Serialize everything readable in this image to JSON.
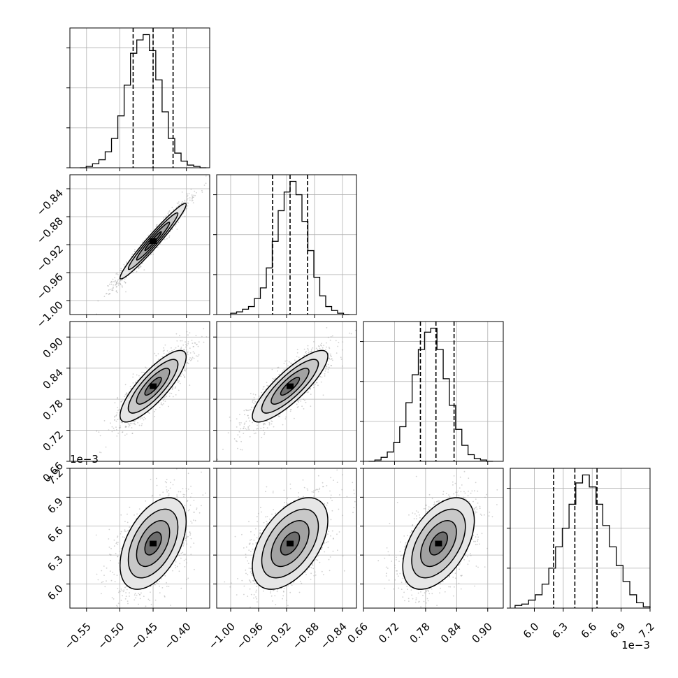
{
  "chart_data": {
    "type": "corner",
    "parameters": [
      {
        "range": [
          -0.575,
          -0.365
        ],
        "ticks": [
          -0.55,
          -0.5,
          -0.45,
          -0.4
        ],
        "tick_labels": [
          "−0.55",
          "−0.50",
          "−0.45",
          "−0.40"
        ],
        "offset_label": ""
      },
      {
        "range": [
          -1.02,
          -0.82
        ],
        "ticks": [
          -1.0,
          -0.96,
          -0.92,
          -0.88,
          -0.84
        ],
        "tick_labels": [
          "−1.00",
          "−0.96",
          "−0.92",
          "−0.88",
          "−0.84"
        ],
        "offset_label": ""
      },
      {
        "range": [
          0.66,
          0.93
        ],
        "ticks": [
          0.66,
          0.72,
          0.78,
          0.84,
          0.9
        ],
        "tick_labels": [
          "0.66",
          "0.72",
          "0.78",
          "0.84",
          "0.90"
        ],
        "offset_label": ""
      },
      {
        "range": [
          0.00575,
          0.0072
        ],
        "ticks": [
          0.006,
          0.0063,
          0.0066,
          0.0069,
          0.0072
        ],
        "tick_labels": [
          "6.0",
          "6.3",
          "6.6",
          "6.9",
          "7.2"
        ],
        "offset_label": "1e−3"
      }
    ],
    "histograms": [
      {
        "edges_range": [
          -0.56,
          -0.37
        ],
        "bins": 20,
        "counts": [
          0,
          1,
          3,
          6,
          12,
          22,
          39,
          62,
          86,
          96,
          100,
          88,
          66,
          42,
          22,
          11,
          5,
          2,
          1,
          0
        ],
        "quantiles": [
          -0.48,
          -0.45,
          -0.42
        ]
      },
      {
        "edges_range": [
          -1.0,
          -0.83
        ],
        "bins": 20,
        "counts": [
          1,
          2,
          4,
          6,
          12,
          20,
          35,
          55,
          78,
          92,
          100,
          90,
          70,
          48,
          28,
          14,
          6,
          3,
          1,
          0
        ],
        "quantiles": [
          -0.94,
          -0.915,
          -0.89
        ]
      },
      {
        "edges_range": [
          0.67,
          0.91
        ],
        "bins": 20,
        "counts": [
          0,
          1,
          3,
          7,
          14,
          26,
          44,
          65,
          84,
          97,
          100,
          84,
          62,
          42,
          24,
          12,
          5,
          2,
          1,
          0
        ],
        "quantiles": [
          0.77,
          0.8,
          0.835
        ]
      },
      {
        "edges_range": [
          0.0058,
          0.0072
        ],
        "bins": 20,
        "counts": [
          2,
          3,
          6,
          10,
          18,
          30,
          46,
          60,
          78,
          94,
          100,
          91,
          78,
          62,
          46,
          32,
          20,
          10,
          4,
          1
        ],
        "quantiles": [
          0.0062,
          0.00642,
          0.00665
        ]
      }
    ],
    "pairs": [
      {
        "row": 1,
        "col": 0,
        "mean": [
          -0.45,
          -0.915
        ],
        "sd": [
          0.023,
          0.025
        ],
        "rho": 0.97
      },
      {
        "row": 2,
        "col": 0,
        "mean": [
          -0.45,
          0.805
        ],
        "sd": [
          0.023,
          0.032
        ],
        "rho": 0.82
      },
      {
        "row": 2,
        "col": 1,
        "mean": [
          -0.915,
          0.805
        ],
        "sd": [
          0.025,
          0.032
        ],
        "rho": 0.84
      },
      {
        "row": 3,
        "col": 0,
        "mean": [
          -0.45,
          0.00642
        ],
        "sd": [
          0.023,
          0.00022
        ],
        "rho": 0.48
      },
      {
        "row": 3,
        "col": 1,
        "mean": [
          -0.915,
          0.00642
        ],
        "sd": [
          0.025,
          0.00022
        ],
        "rho": 0.5
      },
      {
        "row": 3,
        "col": 2,
        "mean": [
          0.805,
          0.00642
        ],
        "sd": [
          0.032,
          0.00022
        ],
        "rho": 0.5
      }
    ],
    "contour_levels_sigma": [
      0.5,
      1.0,
      1.5,
      2.0
    ],
    "grid": true,
    "title": "",
    "xlabel": "",
    "ylabel": ""
  }
}
